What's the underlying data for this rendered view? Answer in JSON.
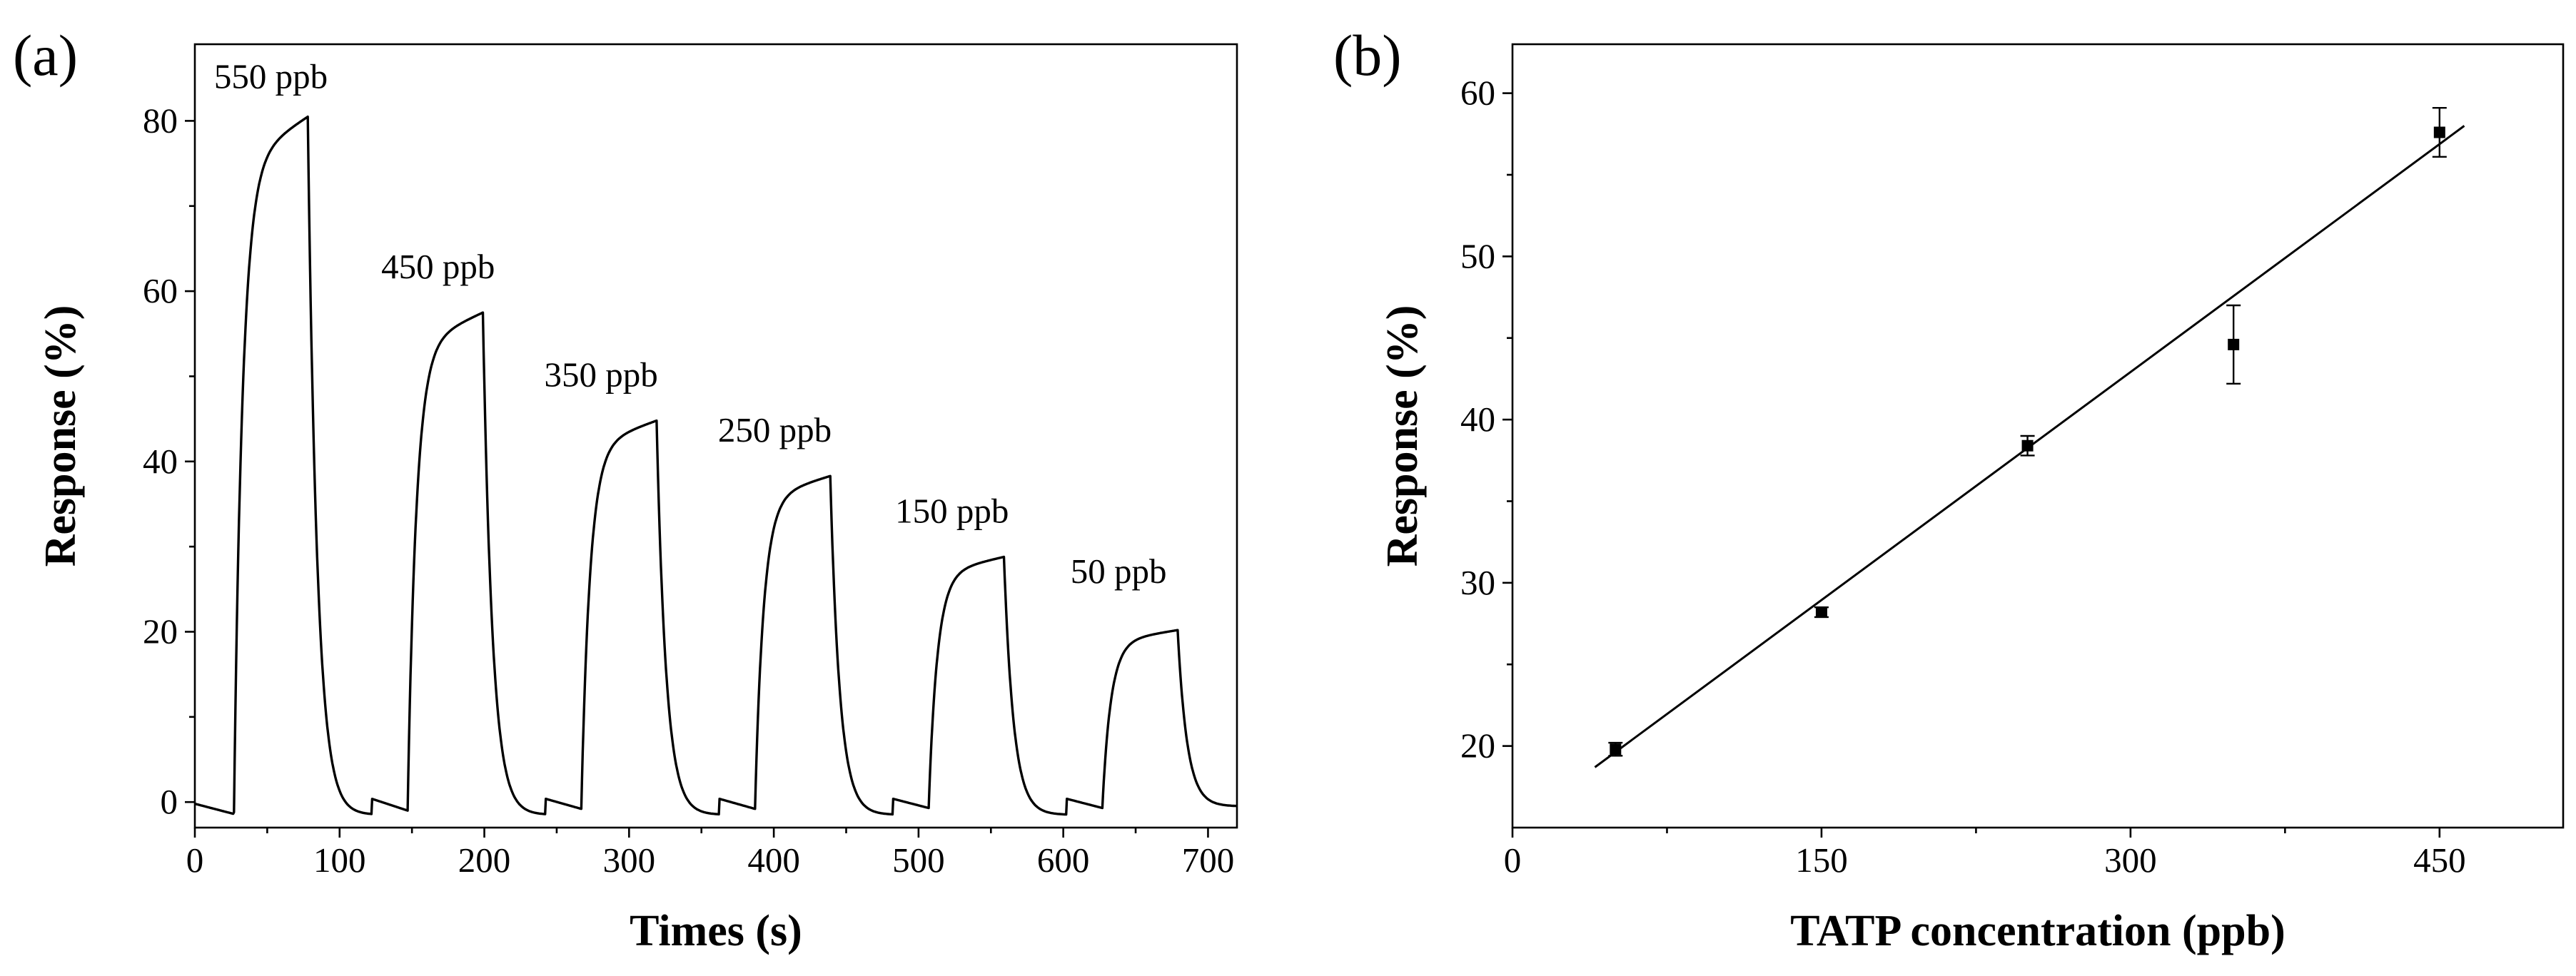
{
  "chart_data": [
    {
      "panel_label": "(a)",
      "type": "line",
      "title": "",
      "xlabel": "Times (s)",
      "ylabel": "Response (%)",
      "xlim": [
        0,
        720
      ],
      "ylim": [
        -3,
        89
      ],
      "xticks": [
        0,
        100,
        200,
        300,
        400,
        500,
        600,
        700
      ],
      "yticks": [
        0,
        20,
        40,
        60,
        80
      ],
      "cycles": [
        {
          "label": "550 ppb",
          "concentration": 550,
          "start": 27,
          "end": 78,
          "peak": 80.5,
          "preDip": -1.2
        },
        {
          "label": "450 ppb",
          "concentration": 450,
          "start": 147,
          "end": 199,
          "peak": 57.5,
          "preDip": -1.0
        },
        {
          "label": "350 ppb",
          "concentration": 350,
          "start": 267,
          "end": 319,
          "peak": 44.8,
          "preDip": -0.8
        },
        {
          "label": "250 ppb",
          "concentration": 250,
          "start": 387,
          "end": 439,
          "peak": 38.3,
          "preDip": -0.8
        },
        {
          "label": "150 ppb",
          "concentration": 150,
          "start": 507,
          "end": 559,
          "peak": 28.8,
          "preDip": -0.7
        },
        {
          "label": "50 ppb",
          "concentration": 50,
          "start": 627,
          "end": 679,
          "peak": 20.2,
          "preDip": -0.7
        }
      ]
    },
    {
      "panel_label": "(b)",
      "type": "scatter",
      "title": "",
      "xlabel": "TATP concentration (ppb)",
      "ylabel": "Response (%)",
      "xlim": [
        0,
        510
      ],
      "ylim": [
        15,
        63
      ],
      "xticks": [
        0,
        150,
        300,
        450
      ],
      "yticks": [
        20,
        30,
        40,
        50,
        60
      ],
      "points": [
        {
          "x": 50,
          "y": 19.8,
          "err": 0.4
        },
        {
          "x": 150,
          "y": 28.2,
          "err": 0.3
        },
        {
          "x": 250,
          "y": 38.4,
          "err": 0.6
        },
        {
          "x": 350,
          "y": 44.6,
          "err": 2.4
        },
        {
          "x": 450,
          "y": 57.6,
          "err": 1.5
        }
      ],
      "fit": {
        "x": [
          40,
          462
        ],
        "y": [
          18.7,
          58.0
        ]
      }
    }
  ]
}
